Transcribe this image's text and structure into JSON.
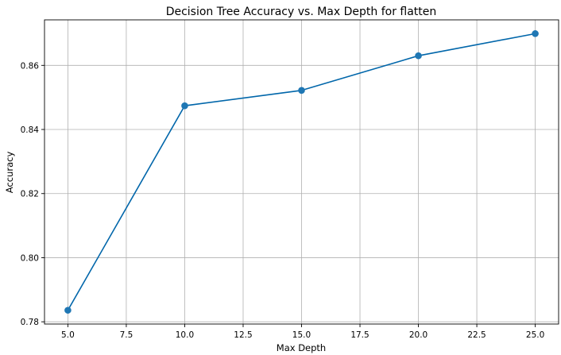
{
  "chart_data": {
    "type": "line",
    "title": "Decision Tree Accuracy vs. Max Depth for flatten",
    "xlabel": "Max Depth",
    "ylabel": "Accuracy",
    "x": [
      5,
      10,
      15,
      20,
      25
    ],
    "series": [
      {
        "values": [
          0.7836,
          0.8474,
          0.8522,
          0.863,
          0.8699
        ],
        "color": "#1f77b4",
        "marker": "circle"
      }
    ],
    "xlim": [
      4.0,
      26.0
    ],
    "ylim": [
      0.7793,
      0.8742
    ],
    "xticks": [
      "5.0",
      "7.5",
      "10.0",
      "12.5",
      "15.0",
      "17.5",
      "20.0",
      "22.5",
      "25.0"
    ],
    "xtick_values": [
      5,
      7.5,
      10,
      12.5,
      15,
      17.5,
      20,
      22.5,
      25
    ],
    "yticks": [
      "0.78",
      "0.80",
      "0.82",
      "0.84",
      "0.86"
    ],
    "ytick_values": [
      0.78,
      0.8,
      0.82,
      0.84,
      0.86
    ],
    "grid": true,
    "line_color": "#0066aa"
  }
}
